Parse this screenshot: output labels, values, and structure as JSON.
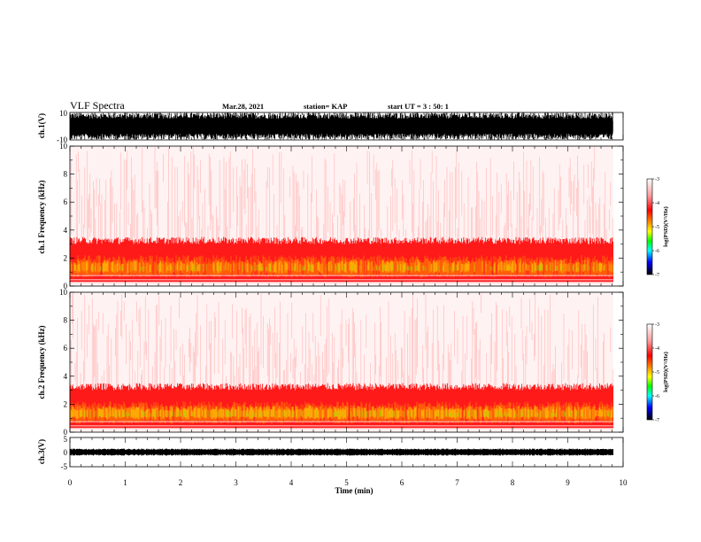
{
  "header": {
    "title": "VLF Spectra",
    "date": "Mar.28, 2021",
    "station": "station= KAP",
    "start": "start  UT =   3 : 50: 1"
  },
  "chart_data": [
    {
      "type": "line",
      "name": "waveform-ch1",
      "ylabel": "ch.1(V)",
      "ylim": [
        -10,
        10
      ],
      "yticks": [
        "10",
        "-10"
      ],
      "xlim": [
        0,
        10
      ],
      "data_extent_min": [
        0,
        9.82
      ],
      "description_values": {
        "typical_amplitude": [
          -10,
          10
        ]
      }
    },
    {
      "type": "heatmap",
      "name": "spectrogram-ch1",
      "ylabel": "ch.1 Frequency  (kHz)",
      "ylim": [
        0,
        10
      ],
      "yticks": [
        "0",
        "2",
        "4",
        "6",
        "8",
        "10"
      ],
      "xlim": [
        0,
        10
      ],
      "strong_band_khz": [
        0.3,
        3.0
      ]
    },
    {
      "type": "heatmap",
      "name": "spectrogram-ch2",
      "ylabel": "ch.2 Frequency  (kHz)",
      "ylim": [
        0,
        10
      ],
      "yticks": [
        "0",
        "2",
        "4",
        "6",
        "8",
        "10"
      ],
      "xlim": [
        0,
        10
      ],
      "strong_band_khz": [
        0.3,
        3.0
      ]
    },
    {
      "type": "line",
      "name": "waveform-ch3",
      "ylabel": "ch.3(V)",
      "ylim": [
        -5,
        5
      ],
      "yticks": [
        "5",
        "0",
        "-5"
      ],
      "xlim": [
        0,
        10
      ]
    }
  ],
  "xaxis": {
    "label": "Time  (min)",
    "ticks": [
      "0",
      "1",
      "2",
      "3",
      "4",
      "5",
      "6",
      "7",
      "8",
      "9",
      "10"
    ]
  },
  "colorbar": {
    "label": "log(PSD)(V²/Hz)",
    "ticks": [
      "-3",
      "-4",
      "-5",
      "-6",
      "-7"
    ],
    "range": [
      -7,
      -3
    ],
    "colors": [
      "#ffffff",
      "#ff9999",
      "#ff0000",
      "#ff8800",
      "#ffff00",
      "#00ff00",
      "#00ffff",
      "#0000ff",
      "#000000"
    ]
  }
}
